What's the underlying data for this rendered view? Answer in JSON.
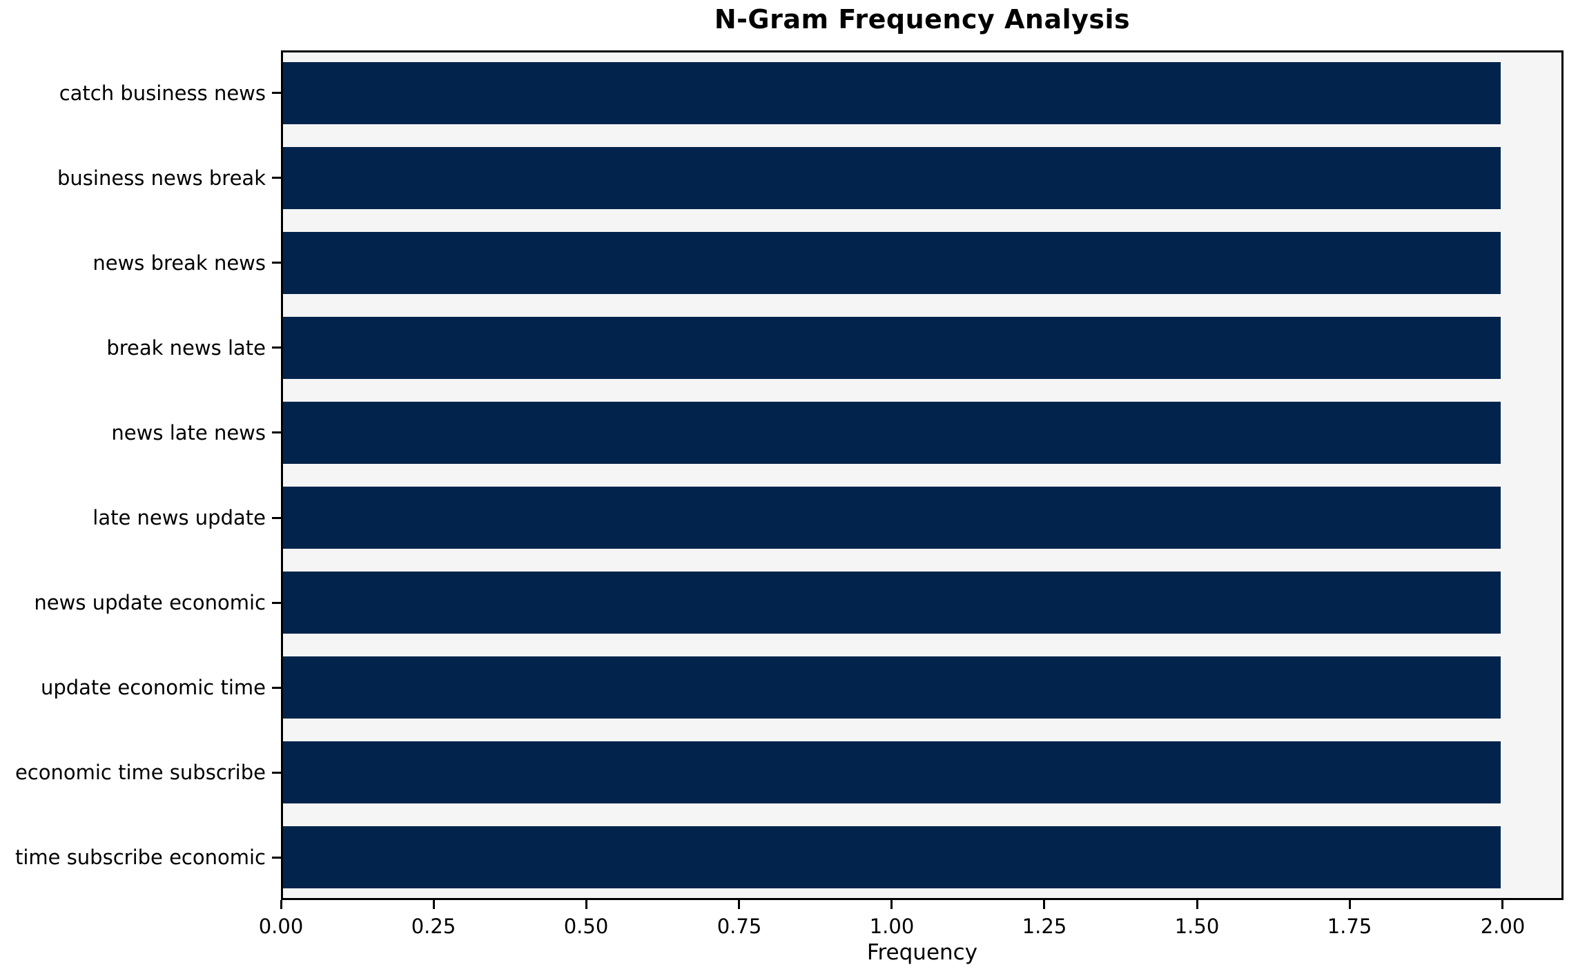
{
  "chart_data": {
    "type": "bar",
    "orientation": "horizontal",
    "title": "N-Gram Frequency Analysis",
    "xlabel": "Frequency",
    "ylabel": "",
    "categories": [
      "catch business news",
      "business news break",
      "news break news",
      "break news late",
      "news late news",
      "late news update",
      "news update economic",
      "update economic time",
      "economic time subscribe",
      "time subscribe economic"
    ],
    "values": [
      2,
      2,
      2,
      2,
      2,
      2,
      2,
      2,
      2,
      2
    ],
    "xlim": [
      0,
      2.1
    ],
    "xtick_values": [
      0.0,
      0.25,
      0.5,
      0.75,
      1.0,
      1.25,
      1.5,
      1.75,
      2.0
    ],
    "xtick_labels": [
      "0.00",
      "0.25",
      "0.50",
      "0.75",
      "1.00",
      "1.25",
      "1.50",
      "1.75",
      "2.00"
    ],
    "grid": false,
    "legend_position": "none",
    "bar_color": "#02244c",
    "plot_background": "#f5f5f5",
    "figure_background": "#ffffff"
  }
}
